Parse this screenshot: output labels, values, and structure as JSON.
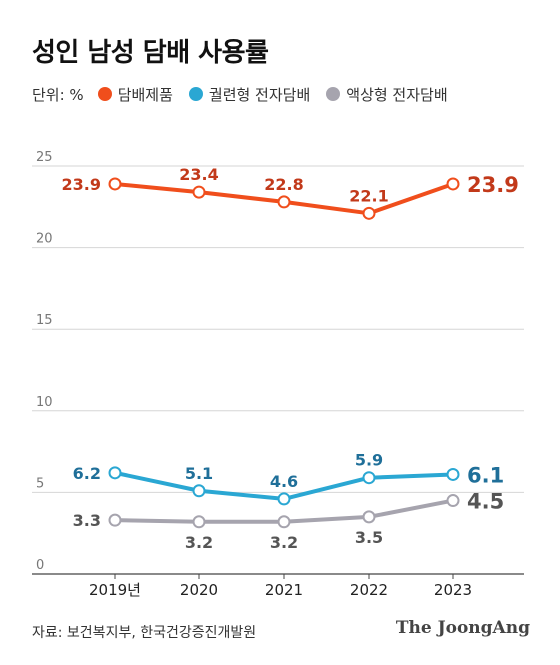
{
  "header": {
    "title": "성인 남성 담배 사용률",
    "unit_label": "단위: %"
  },
  "legend": [
    {
      "label": "담배제품",
      "color": "#f04e1c"
    },
    {
      "label": "궐련형 전자담배",
      "color": "#2aa7d3"
    },
    {
      "label": "액상형 전자담배",
      "color": "#a6a4ae"
    }
  ],
  "chart_data": {
    "type": "line",
    "title": "성인 남성 담배 사용률",
    "x": [
      "2019년",
      "2020",
      "2021",
      "2022",
      "2023"
    ],
    "ylim": [
      0,
      25
    ],
    "yticks": [
      0,
      5,
      10,
      15,
      20,
      25
    ],
    "grid": true,
    "legend_position": "top",
    "series": [
      {
        "name": "담배제품",
        "values": [
          23.9,
          23.4,
          22.8,
          22.1,
          23.9
        ],
        "labels": [
          "23.9",
          "23.4",
          "22.8",
          "22.1",
          "23.9"
        ],
        "color": "#f04e1c",
        "label_color": "#c2391a"
      },
      {
        "name": "궐련형 전자담배",
        "values": [
          6.2,
          5.1,
          4.6,
          5.9,
          6.1
        ],
        "labels": [
          "6.2",
          "5.1",
          "4.6",
          "5.9",
          "6.1"
        ],
        "color": "#2aa7d3",
        "label_color": "#1f6f99"
      },
      {
        "name": "액상형 전자담배",
        "values": [
          3.3,
          3.2,
          3.2,
          3.5,
          4.5
        ],
        "labels": [
          "3.3",
          "3.2",
          "3.2",
          "3.5",
          "4.5"
        ],
        "color": "#a6a4ae",
        "label_color": "#555555"
      }
    ]
  },
  "footer": {
    "source": "자료: 보건복지부, 한국건강증진개발원",
    "brand": "The JoongAng"
  }
}
